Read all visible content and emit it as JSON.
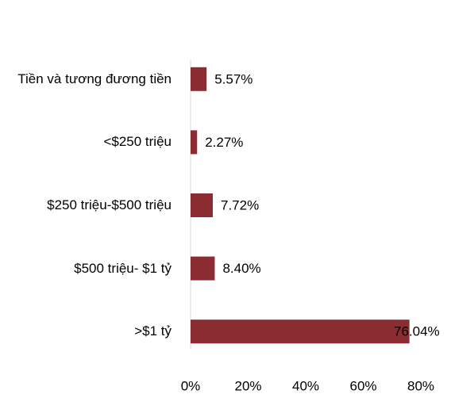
{
  "chart_data": {
    "type": "bar",
    "orientation": "horizontal",
    "categories": [
      "Tiền và tương đương tiền",
      "<$250 triệu",
      "$250 triệu-$500 triệu",
      "$500 triệu- $1 tỷ",
      ">$1 tỷ"
    ],
    "values": [
      5.57,
      2.27,
      7.72,
      8.4,
      76.04
    ],
    "value_labels": [
      "5.57%",
      "2.27%",
      "7.72%",
      "8.40%",
      "76.04%"
    ],
    "color": "#8b2c33",
    "xlim": [
      0,
      80
    ],
    "xticks": [
      {
        "value": 0,
        "label": "0%"
      },
      {
        "value": 20,
        "label": "20%"
      },
      {
        "value": 40,
        "label": "40%"
      },
      {
        "value": 60,
        "label": "60%"
      },
      {
        "value": 80,
        "label": "80%"
      }
    ],
    "grid": false
  }
}
